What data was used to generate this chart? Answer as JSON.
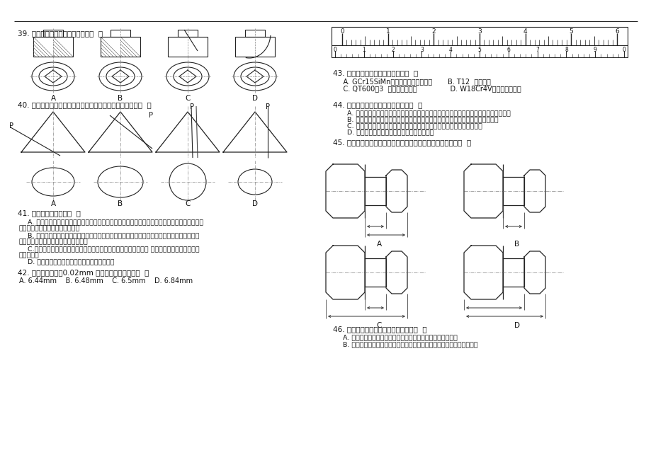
{
  "bg": "#ffffff",
  "lc": "#222222",
  "tc": "#111111",
  "q39": "39. 下列剖视图中，正确的一组是（  ）",
  "q40": "40. 圆锥被一平面截切，截交线为椭圆时，截平面的位置是（  ）",
  "q41_hdr": "41. 下列说法错误的是（  ）",
  "q41_a1": "    A. 在装配图中，当剖切平面通过螺杆轴线时，螺纹紧固件均按未剖切绘制；紧固件的工艺结构，",
  "q41_a2": "如倒角、退刀槽等均可省略不画。",
  "q41_b1": "    B. 在装配图中，相邻两零件的剖面线方向应相反或方向相同间距不同；相邻两零件的间隔很小",
  "q41_b2": "时，两零件的轮廓线可简化为一条线。",
  "q41_c1": "    C.普通平键连接中，键的工作面与键槽的两侧面接触，面成一条线 键的底面与轴上键槽的底面",
  "q41_c2": "成一条线。",
  "q41_d": "    D. 销连接中，销与销孔为配合，画成一条线。",
  "q42_hdr": "42. 图示读数精度为0.02mm 的游标卡尺的读数是（  ）",
  "q42_opts": "A. 6.44mm    B. 6.48mm    C. 6.5mm    D. 6.84mm",
  "q43_hdr": "43. 下列材料的用途举例错误的是（  ）",
  "q43_ab": "    A. GCr15SiMn（滚动轴承内、外圈）       B. T12  （锉刀）",
  "q43_cd": "    C. QT600－3  （内燃机曲轴）               D. W18Cr4V（丝锥、板牙）",
  "q44_hdr": "44. 下列关于热处理描述不正确的是（  ）",
  "q44_a": "      A. 自然时效是是将铸件置于露天场地半年以上，使其缓慢地发生变形，从而使内应力消除",
  "q44_b": "      B. 调质热处理是淬火加高温回火的复合热处理，用于处理各种弹性元件和冲击工具",
  "q44_c": "      C. 某些大型非合金钢工件，如铁道车辆的车轴，可用正火作为最终热处理",
  "q44_d": "      D. 淬火可提高钢的硬度，退火可降低钢的硬度",
  "q45_hdr": "45. 在卧式车床上加工阶梯轴，各图中尺寸标注便于测量的是（  ）",
  "q46_hdr": "46. 下列关于锉削加工的说法正确的是（  ）",
  "q46_a": "    A. 交叉锉锉刀的运动方向是交叉的，适宜锉削余量较小的工件",
  "q46_b": "    B. 平面锉削是锉削中最基本的操作，常用三种操作方法中滚锉法使用最多"
}
